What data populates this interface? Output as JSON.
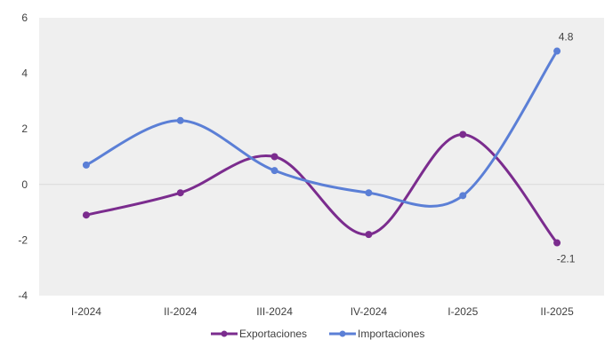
{
  "chart_data": {
    "type": "line",
    "title": "",
    "xlabel": "",
    "ylabel": "",
    "categories": [
      "I-2024",
      "II-2024",
      "III-2024",
      "IV-2024",
      "I-2025",
      "II-2025"
    ],
    "ylim": [
      -4,
      6
    ],
    "yticks": [
      -4,
      -2,
      0,
      2,
      4,
      6
    ],
    "grid": false,
    "legend_position": "bottom",
    "series": [
      {
        "name": "Exportaciones",
        "color": "#7B2C8E",
        "values": [
          -1.1,
          -0.3,
          1.0,
          -1.8,
          1.8,
          -2.1
        ],
        "labels": [
          "",
          "",
          "",
          "",
          "",
          "-2.1"
        ]
      },
      {
        "name": "Importaciones",
        "color": "#5B7FD6",
        "values": [
          0.7,
          2.3,
          0.5,
          -0.3,
          -0.4,
          4.8
        ],
        "labels": [
          "",
          "",
          "",
          "",
          "",
          "4.8"
        ]
      }
    ],
    "zero_line_color": "#D9D9D9",
    "plot_background": "#EFEFEF"
  }
}
